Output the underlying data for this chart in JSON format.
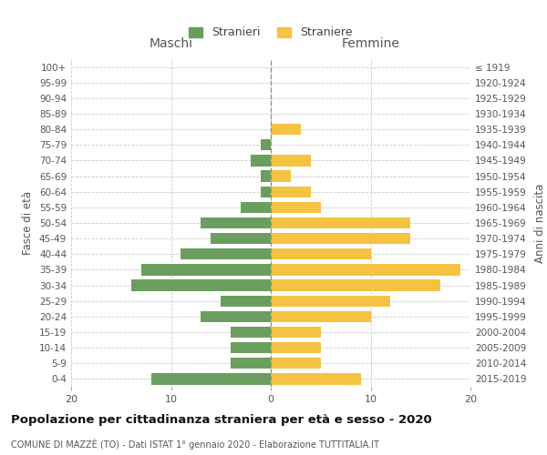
{
  "age_groups": [
    "0-4",
    "5-9",
    "10-14",
    "15-19",
    "20-24",
    "25-29",
    "30-34",
    "35-39",
    "40-44",
    "45-49",
    "50-54",
    "55-59",
    "60-64",
    "65-69",
    "70-74",
    "75-79",
    "80-84",
    "85-89",
    "90-94",
    "95-99",
    "100+"
  ],
  "birth_years": [
    "2015-2019",
    "2010-2014",
    "2005-2009",
    "2000-2004",
    "1995-1999",
    "1990-1994",
    "1985-1989",
    "1980-1984",
    "1975-1979",
    "1970-1974",
    "1965-1969",
    "1960-1964",
    "1955-1959",
    "1950-1954",
    "1945-1949",
    "1940-1944",
    "1935-1939",
    "1930-1934",
    "1925-1929",
    "1920-1924",
    "≤ 1919"
  ],
  "males": [
    12,
    4,
    4,
    4,
    7,
    5,
    14,
    13,
    9,
    6,
    7,
    3,
    1,
    1,
    2,
    1,
    0,
    0,
    0,
    0,
    0
  ],
  "females": [
    9,
    5,
    5,
    5,
    10,
    12,
    17,
    19,
    10,
    14,
    14,
    5,
    4,
    2,
    4,
    0,
    3,
    0,
    0,
    0,
    0
  ],
  "male_color": "#6a9e5e",
  "female_color": "#f5c242",
  "bg_color": "#ffffff",
  "grid_color": "#cccccc",
  "title": "Popolazione per cittadinanza straniera per età e sesso - 2020",
  "subtitle": "COMUNE DI MAZZÈ (TO) - Dati ISTAT 1° gennaio 2020 - Elaborazione TUTTITALIA.IT",
  "legend_male": "Stranieri",
  "legend_female": "Straniere",
  "xlabel_left": "Maschi",
  "xlabel_right": "Femmine",
  "ylabel_left": "Fasce di età",
  "ylabel_right": "Anni di nascita",
  "xlim": 20
}
